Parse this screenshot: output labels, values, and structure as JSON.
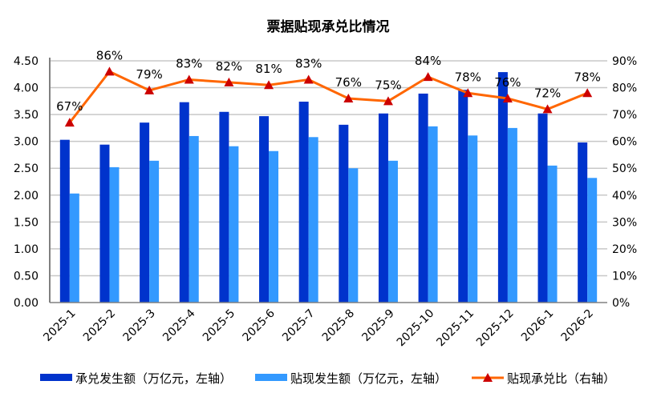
{
  "chart_data": {
    "type": "bar+line",
    "title": "票据贴现承兑比情况",
    "categories": [
      "2025-1",
      "2025-2",
      "2025-3",
      "2025-4",
      "2025-5",
      "2025-6",
      "2025-7",
      "2025-8",
      "2025-9",
      "2025-10",
      "2025-11",
      "2025-12",
      "2026-1",
      "2026-2"
    ],
    "series": [
      {
        "name": "承兑发生额（万亿元，左轴）",
        "type": "bar",
        "axis": "left",
        "color": "#0033cc",
        "values": [
          3.03,
          2.94,
          3.35,
          3.73,
          3.55,
          3.47,
          3.74,
          3.31,
          3.52,
          3.89,
          3.96,
          4.29,
          3.52,
          2.98
        ]
      },
      {
        "name": "贴现发生额（万亿元，左轴）",
        "type": "bar",
        "axis": "left",
        "color": "#3399ff",
        "values": [
          2.03,
          2.52,
          2.64,
          3.1,
          2.91,
          2.82,
          3.08,
          2.5,
          2.64,
          3.28,
          3.11,
          3.25,
          2.55,
          2.32
        ]
      },
      {
        "name": "贴现承兑比（右轴）",
        "type": "line",
        "axis": "right",
        "color": "#ff6600",
        "marker_color": "#cc0000",
        "values": [
          67,
          86,
          79,
          83,
          82,
          81,
          83,
          76,
          75,
          84,
          78,
          76,
          72,
          78
        ],
        "labels": [
          "67%",
          "86%",
          "79%",
          "83%",
          "82%",
          "81%",
          "83%",
          "76%",
          "75%",
          "84%",
          "78%",
          "76%",
          "72%",
          "78%"
        ]
      }
    ],
    "left_axis": {
      "ylim": [
        0,
        4.5
      ],
      "ticks": [
        "0.00",
        "0.50",
        "1.00",
        "1.50",
        "2.00",
        "2.50",
        "3.00",
        "3.50",
        "4.00",
        "4.50"
      ]
    },
    "right_axis": {
      "ylim": [
        0,
        90
      ],
      "ticks": [
        "0%",
        "10%",
        "20%",
        "30%",
        "40%",
        "50%",
        "60%",
        "70%",
        "80%",
        "90%"
      ]
    },
    "grid": true,
    "legend_position": "bottom"
  }
}
